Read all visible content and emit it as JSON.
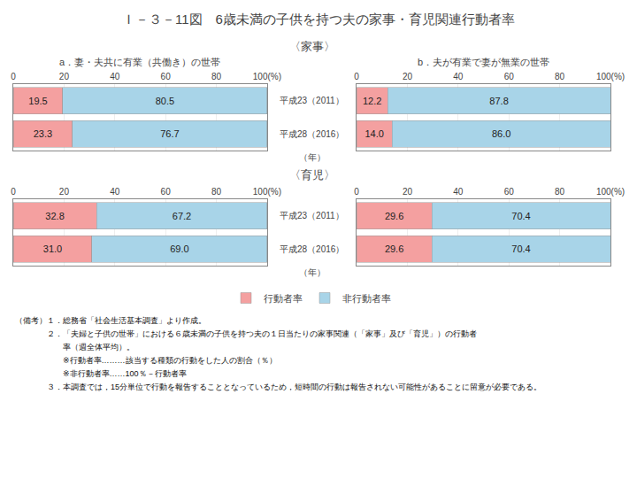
{
  "title": "Ｉ－３－11図　6歳未満の子供を持つ夫の家事・育児関連行動者率",
  "annotations": [
    "（備考）１．総務省「社会生活基本調査」より作成。",
    "　　　　２．「夫婦と子供の世帯」における６歳未満の子供を持つ夫の１日当たりの家事関連（「家事」及び「育児」）の行動者",
    "　　　　　　率（週全体平均）。",
    "　　　　　　※行動者率………該当する種類の行動をした人の割合（％）",
    "　　　　　　※非行動者率……100％－行動者率",
    "　　　　３．本調査では，15分単位で行動を報告することとなっているため，短時間の行動は報告されない可能性があることに留意が必要である。"
  ],
  "chart_data": [
    {
      "type": "bar",
      "orientation": "horizontal",
      "stacked": true,
      "data_labels": true,
      "grid": true,
      "tick_labels": "x",
      "title": "〈家事〉",
      "subtitle": "a．妻・夫共に有業（共働き）の世帯",
      "ylabel": "（年）",
      "categories": [
        "平成23（2011）",
        "平成28（2016）"
      ],
      "series": [
        {
          "name": "行動者率",
          "color": "#F4A0A0",
          "values": [
            19.5,
            23.3
          ],
          "value_labels": [
            "19.5",
            "23.3"
          ]
        },
        {
          "name": "非行動者率",
          "color": "#A8D4E8",
          "values": [
            80.5,
            76.7
          ],
          "value_labels": [
            "80.5",
            "76.7"
          ]
        }
      ],
      "xlim": [
        0,
        100
      ],
      "xticks": [
        0,
        20,
        40,
        60,
        80,
        {
          "value": 100,
          "label": "100(%)"
        }
      ]
    },
    {
      "type": "bar",
      "orientation": "horizontal",
      "stacked": true,
      "data_labels": true,
      "grid": true,
      "tick_labels": "x",
      "subtitle": "b．夫が有業で妻が無業の世帯",
      "categories": [
        "平成23（2011）",
        "平成28（2016）"
      ],
      "series": [
        {
          "name": "行動者率",
          "color": "#F4A0A0",
          "values": [
            12.2,
            14.0
          ],
          "value_labels": [
            "12.2",
            "14.0"
          ]
        },
        {
          "name": "非行動者率",
          "color": "#A8D4E8",
          "values": [
            87.8,
            86.0
          ],
          "value_labels": [
            "87.8",
            "86.0"
          ]
        }
      ],
      "xlim": [
        0,
        100
      ],
      "xticks": [
        0,
        20,
        40,
        60,
        80,
        {
          "value": 100,
          "label": "100(%)"
        }
      ]
    },
    {
      "type": "bar",
      "orientation": "horizontal",
      "stacked": true,
      "data_labels": true,
      "grid": true,
      "tick_labels": "x",
      "title": "〈育児〉",
      "ylabel": "（年）",
      "categories": [
        "平成23（2011）",
        "平成28（2016）"
      ],
      "series": [
        {
          "name": "行動者率",
          "color": "#F4A0A0",
          "values": [
            32.8,
            31.0
          ],
          "value_labels": [
            "32.8",
            "31.0"
          ]
        },
        {
          "name": "非行動者率",
          "color": "#A8D4E8",
          "values": [
            67.2,
            69.0
          ],
          "value_labels": [
            "67.2",
            "69.0"
          ]
        }
      ],
      "xlim": [
        0,
        100
      ],
      "xticks": [
        0,
        20,
        40,
        60,
        80,
        {
          "value": 100,
          "label": "100(%)"
        }
      ]
    },
    {
      "type": "bar",
      "orientation": "horizontal",
      "stacked": true,
      "data_labels": true,
      "grid": true,
      "tick_labels": "x",
      "categories": [
        "平成23（2011）",
        "平成28（2016）"
      ],
      "series": [
        {
          "name": "行動者率",
          "color": "#F4A0A0",
          "values": [
            29.6,
            29.6
          ],
          "value_labels": [
            "29.6",
            "29.6"
          ]
        },
        {
          "name": "非行動者率",
          "color": "#A8D4E8",
          "values": [
            70.4,
            70.4
          ],
          "value_labels": [
            "70.4",
            "70.4"
          ]
        }
      ],
      "xlim": [
        0,
        100
      ],
      "xticks": [
        0,
        20,
        40,
        60,
        80,
        {
          "value": 100,
          "label": "100(%)"
        }
      ]
    }
  ]
}
